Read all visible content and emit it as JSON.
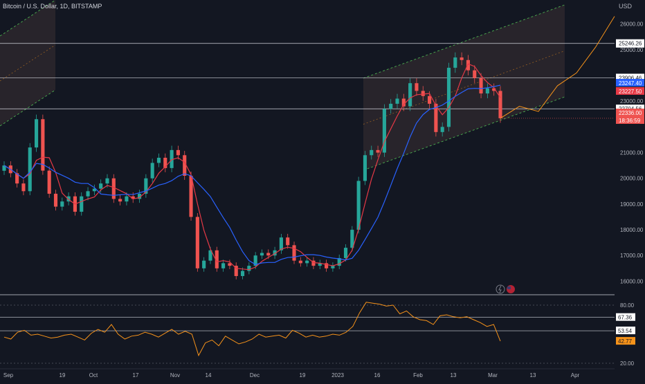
{
  "header": {
    "title": "Bitcoin / U.S. Dollar, 1D, BITSTAMP"
  },
  "currency_label": "USD",
  "colors": {
    "background": "#131722",
    "up": "#26a69a",
    "down": "#ef5350",
    "ma_fast": "#e63946",
    "ma_slow": "#2962ff",
    "channel": "#4caf50",
    "projection": "#f7931a",
    "rsi": "#f7931a",
    "level_line": "#d1d4dc",
    "text": "#b2b5be"
  },
  "price_axis": {
    "ticks": [
      "26000.00",
      "25000.00",
      "23000.00",
      "21000.00",
      "20000.00",
      "19000.00",
      "18000.00",
      "17000.00",
      "16000.00"
    ],
    "tick_values": [
      26000,
      25000,
      23000,
      21000,
      20000,
      19000,
      18000,
      17000,
      16000
    ]
  },
  "rsi_axis": {
    "ticks": [
      "80.00",
      "20.00"
    ],
    "tick_values": [
      80,
      20
    ]
  },
  "time_axis": {
    "labels": [
      "Sep",
      "19",
      "Oct",
      "17",
      "Nov",
      "14",
      "Dec",
      "19",
      "2023",
      "16",
      "Feb",
      "13",
      "Mar",
      "13",
      "Apr"
    ]
  },
  "price_levels": [
    {
      "label": "25246.26",
      "value": 25246.26
    },
    {
      "label": "23906.46",
      "value": 23906.46
    },
    {
      "label": "22704.56",
      "value": 22704.56
    }
  ],
  "current_price_tags": [
    {
      "label": "23247.40",
      "color": "#2962ff"
    },
    {
      "label": "23227.50",
      "color": "#e63946"
    },
    {
      "label": "22336.00",
      "color": "#ef5350"
    },
    {
      "label": "18:36:59",
      "color": "#ef5350"
    }
  ],
  "rsi_levels": [
    {
      "label": "67.36",
      "value": 67.36
    },
    {
      "label": "53.54",
      "value": 53.54
    },
    {
      "label": "42.77",
      "value": 42.77,
      "highlight": true
    }
  ],
  "chart_data": {
    "type": "line",
    "title": "Bitcoin / U.S. Dollar, 1D, BITSTAMP",
    "ylabel": "USD",
    "ylim": [
      15500,
      26800
    ],
    "rsi_ylim": [
      15,
      90
    ],
    "period": {
      "from": "Sep 2022",
      "to": "Mar 2023"
    },
    "price_close_series": [
      {
        "date": "Sep",
        "value": 20500
      },
      {
        "date": "Sep",
        "value": 20200
      },
      {
        "date": "Sep",
        "value": 19800
      },
      {
        "date": "Sep",
        "value": 19500
      },
      {
        "date": "Sep",
        "value": 21200
      },
      {
        "date": "Sep",
        "value": 22300
      },
      {
        "date": "Sep",
        "value": 20300
      },
      {
        "date": "19",
        "value": 19400
      },
      {
        "date": "19",
        "value": 18900
      },
      {
        "date": "19",
        "value": 19100
      },
      {
        "date": "19",
        "value": 19300
      },
      {
        "date": "19",
        "value": 18700
      },
      {
        "date": "Oct",
        "value": 19300
      },
      {
        "date": "Oct",
        "value": 19500
      },
      {
        "date": "Oct",
        "value": 19600
      },
      {
        "date": "Oct",
        "value": 19800
      },
      {
        "date": "Oct",
        "value": 20000
      },
      {
        "date": "Oct",
        "value": 19200
      },
      {
        "date": "Oct",
        "value": 19100
      },
      {
        "date": "17",
        "value": 19300
      },
      {
        "date": "17",
        "value": 19200
      },
      {
        "date": "17",
        "value": 19400
      },
      {
        "date": "17",
        "value": 20000
      },
      {
        "date": "17",
        "value": 20600
      },
      {
        "date": "17",
        "value": 20800
      },
      {
        "date": "17",
        "value": 20400
      },
      {
        "date": "17",
        "value": 21100
      },
      {
        "date": "Nov",
        "value": 20900
      },
      {
        "date": "Nov",
        "value": 20100
      },
      {
        "date": "Nov",
        "value": 18500
      },
      {
        "date": "Nov",
        "value": 16500
      },
      {
        "date": "Nov",
        "value": 16800
      },
      {
        "date": "Nov",
        "value": 17200
      },
      {
        "date": "14",
        "value": 16500
      },
      {
        "date": "14",
        "value": 16700
      },
      {
        "date": "14",
        "value": 16600
      },
      {
        "date": "14",
        "value": 16200
      },
      {
        "date": "14",
        "value": 16400
      },
      {
        "date": "14",
        "value": 16600
      },
      {
        "date": "Dec",
        "value": 17000
      },
      {
        "date": "Dec",
        "value": 17100
      },
      {
        "date": "Dec",
        "value": 17000
      },
      {
        "date": "Dec",
        "value": 17200
      },
      {
        "date": "Dec",
        "value": 17700
      },
      {
        "date": "Dec",
        "value": 17400
      },
      {
        "date": "Dec",
        "value": 16800
      },
      {
        "date": "19",
        "value": 16700
      },
      {
        "date": "19",
        "value": 16800
      },
      {
        "date": "19",
        "value": 16600
      },
      {
        "date": "19",
        "value": 16700
      },
      {
        "date": "19",
        "value": 16500
      },
      {
        "date": "2023",
        "value": 16600
      },
      {
        "date": "2023",
        "value": 16900
      },
      {
        "date": "2023",
        "value": 17300
      },
      {
        "date": "2023",
        "value": 18000
      },
      {
        "date": "2023",
        "value": 19900
      },
      {
        "date": "2023",
        "value": 20900
      },
      {
        "date": "16",
        "value": 21100
      },
      {
        "date": "16",
        "value": 21000
      },
      {
        "date": "16",
        "value": 22700
      },
      {
        "date": "16",
        "value": 22900
      },
      {
        "date": "16",
        "value": 23100
      },
      {
        "date": "16",
        "value": 22800
      },
      {
        "date": "Feb",
        "value": 23700
      },
      {
        "date": "Feb",
        "value": 23400
      },
      {
        "date": "Feb",
        "value": 23200
      },
      {
        "date": "Feb",
        "value": 22900
      },
      {
        "date": "Feb",
        "value": 21800
      },
      {
        "date": "13",
        "value": 22000
      },
      {
        "date": "13",
        "value": 24300
      },
      {
        "date": "13",
        "value": 24700
      },
      {
        "date": "13",
        "value": 24600
      },
      {
        "date": "13",
        "value": 24200
      },
      {
        "date": "13",
        "value": 23900
      },
      {
        "date": "13",
        "value": 23300
      },
      {
        "date": "Mar",
        "value": 23500
      },
      {
        "date": "Mar",
        "value": 23400
      },
      {
        "date": "Mar",
        "value": 22336
      }
    ],
    "projection_path": [
      {
        "date": "Mar",
        "value": 22336
      },
      {
        "date": "Mar",
        "value": 22800
      },
      {
        "date": "13",
        "value": 22600
      },
      {
        "date": "13",
        "value": 23600
      },
      {
        "date": "13",
        "value": 24100
      },
      {
        "date": "Apr",
        "value": 25100
      },
      {
        "date": "Apr",
        "value": 26300
      }
    ],
    "rsi_series": [
      47,
      45,
      52,
      54,
      49,
      50,
      48,
      46,
      47,
      49,
      50,
      47,
      44,
      51,
      55,
      52,
      60,
      50,
      45,
      48,
      49,
      52,
      50,
      47,
      51,
      55,
      50,
      53,
      50,
      28,
      41,
      44,
      38,
      48,
      44,
      40,
      42,
      45,
      50,
      47,
      48,
      49,
      46,
      54,
      51,
      47,
      49,
      47,
      48,
      50,
      49,
      52,
      58,
      72,
      83,
      82,
      81,
      79,
      80,
      71,
      74,
      68,
      65,
      64,
      60,
      69,
      70,
      68,
      67,
      68,
      65,
      62,
      58,
      60,
      42.77
    ],
    "ma_fast_label": "23227.50",
    "ma_slow_label": "23247.40"
  }
}
